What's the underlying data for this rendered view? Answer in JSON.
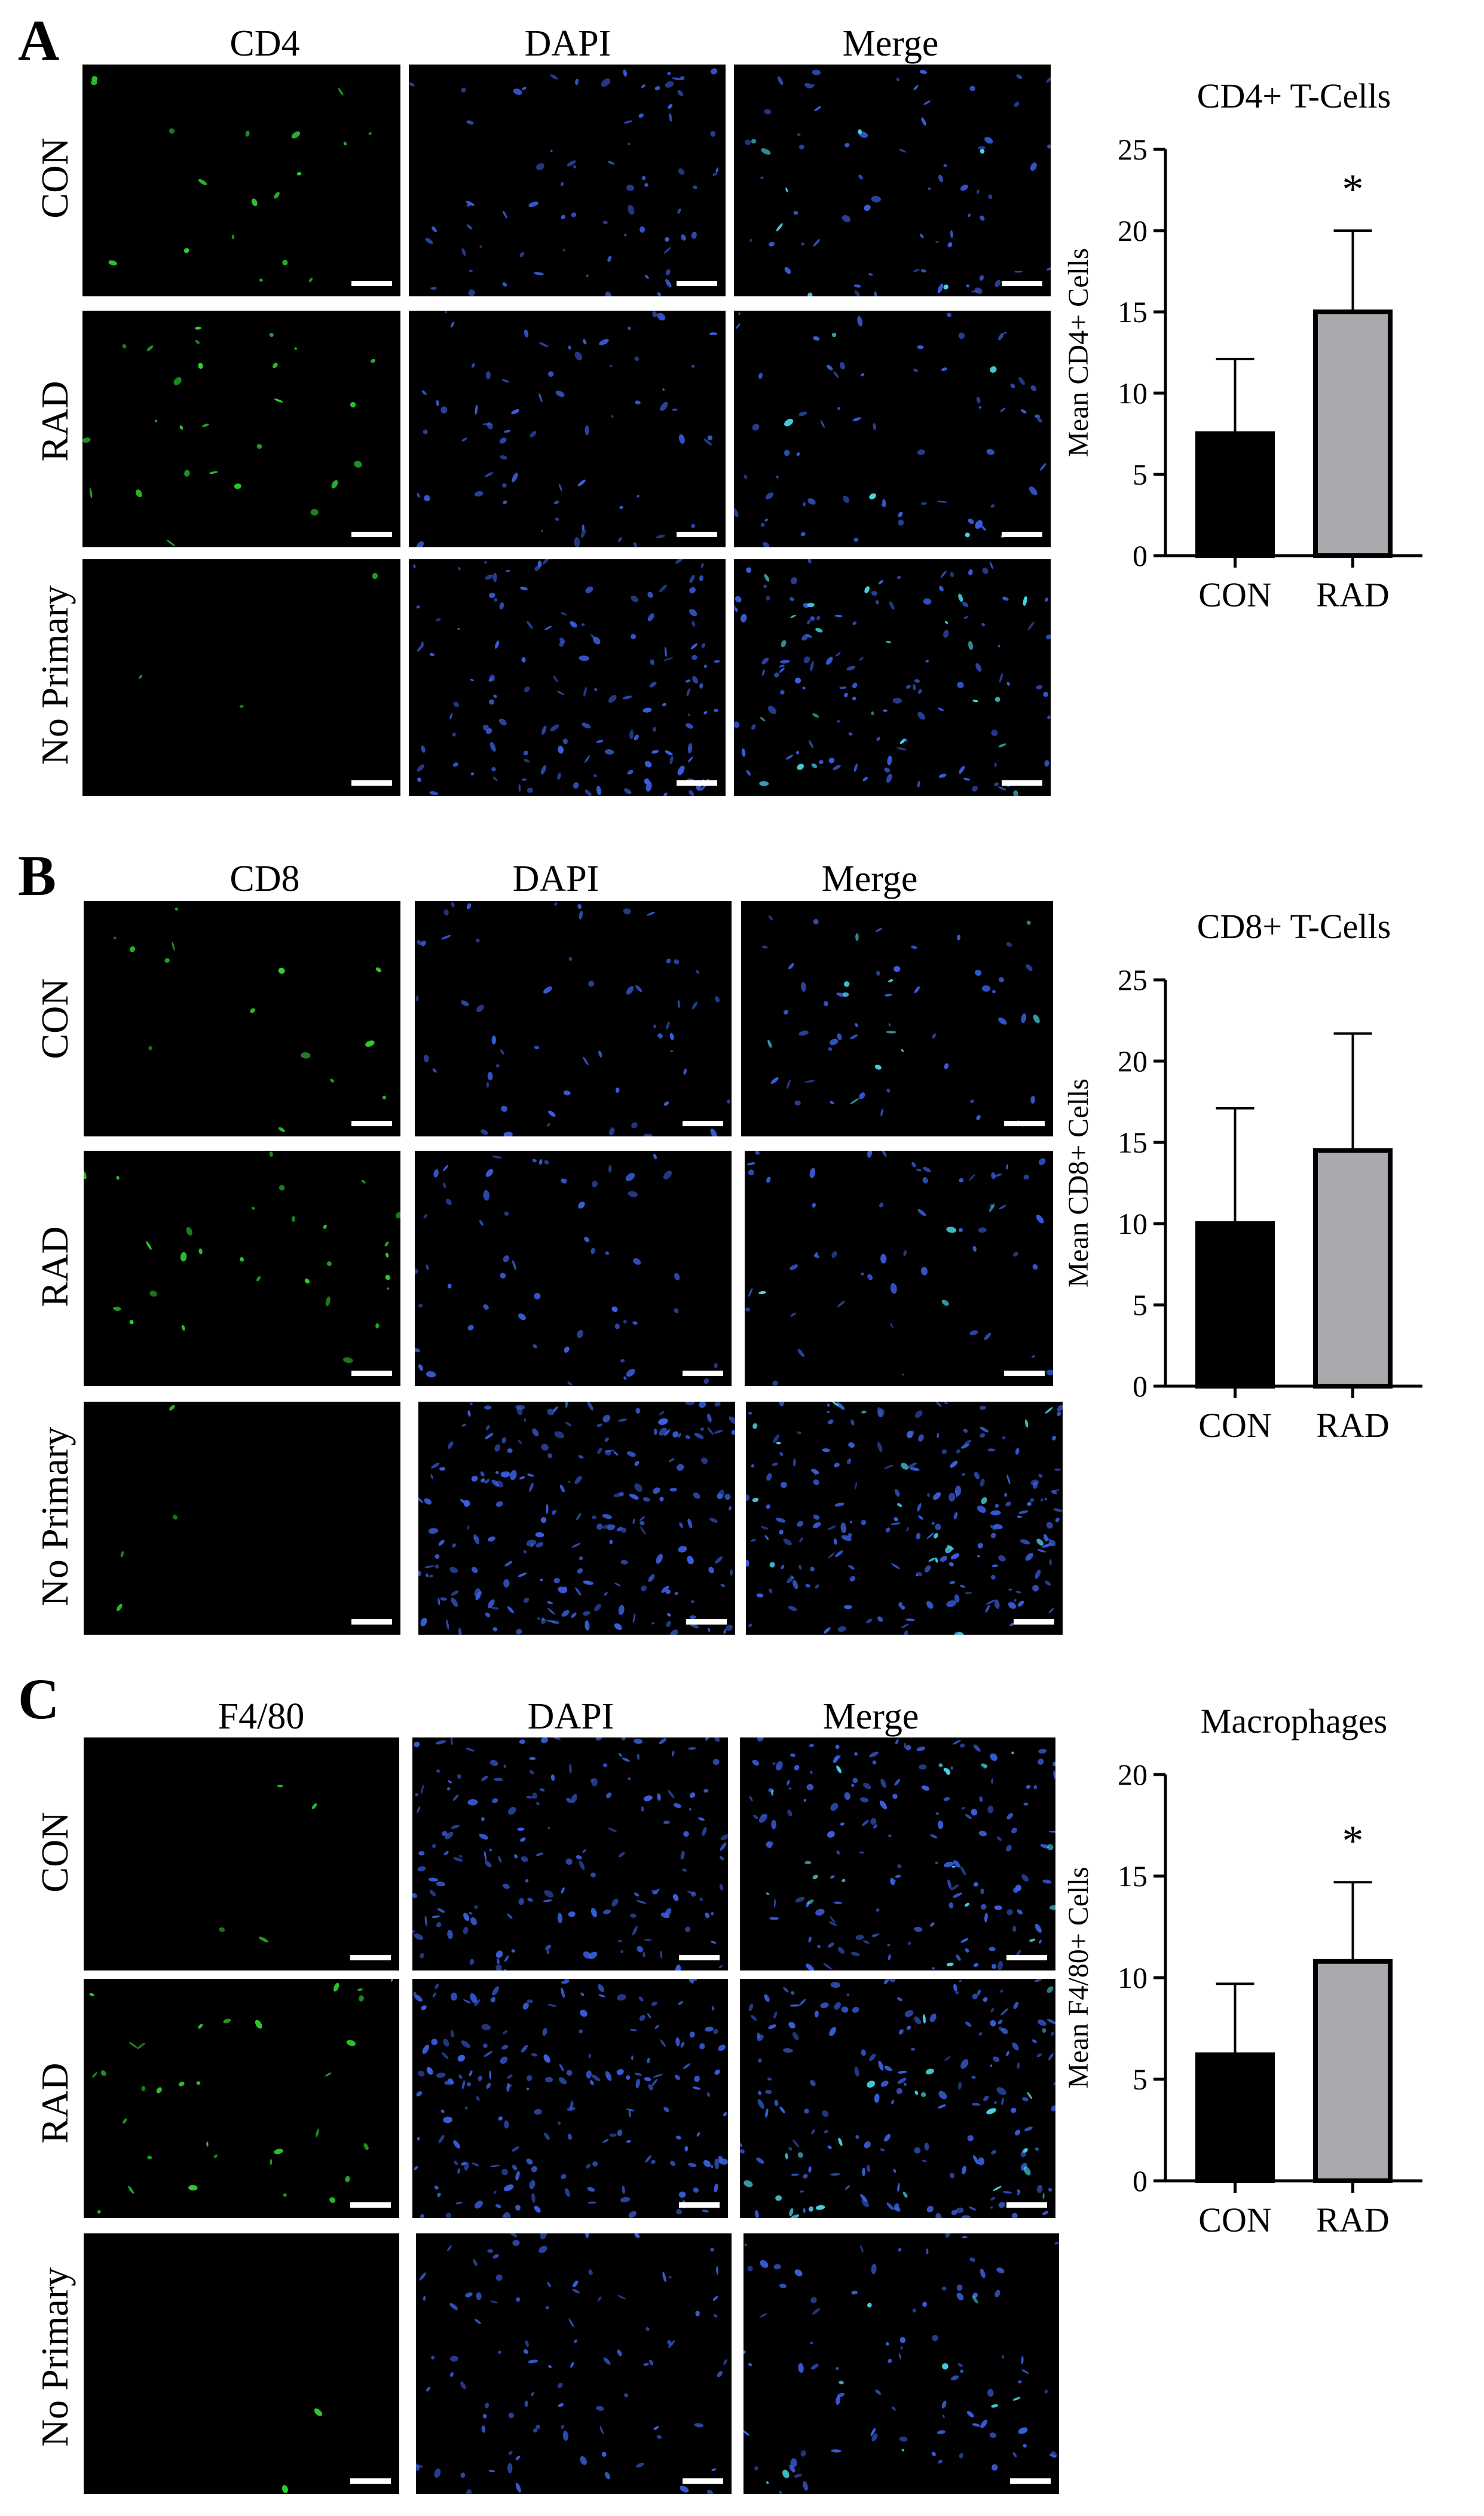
{
  "figure": {
    "panels": [
      {
        "id": "A",
        "letter": "A",
        "columns": [
          "CD4",
          "DAPI",
          "Merge"
        ],
        "rows": [
          "CON",
          "RAD",
          "No Primary"
        ],
        "chart_index": 0
      },
      {
        "id": "B",
        "letter": "B",
        "columns": [
          "CD8",
          "DAPI",
          "Merge"
        ],
        "rows": [
          "CON",
          "RAD",
          "No Primary"
        ],
        "chart_index": 1
      },
      {
        "id": "C",
        "letter": "C",
        "columns": [
          "F4/80",
          "DAPI",
          "Merge"
        ],
        "rows": [
          "CON",
          "RAD",
          "No Primary"
        ],
        "chart_index": 2
      }
    ],
    "colors": {
      "marker_green": "#2fd12f",
      "dapi_blue": "#3a5fe0",
      "merge_cyan": "#4ad8e8",
      "bar_con": "#000000",
      "bar_rad": "#a7a9ac"
    }
  },
  "chart_data": [
    {
      "type": "bar",
      "title": "CD4+ T-Cells",
      "ylabel": "Mean CD4+ Cells",
      "categories": [
        "CON",
        "RAD"
      ],
      "values": [
        7.5,
        15
      ],
      "errors": [
        4.6,
        5
      ],
      "ylim": [
        0,
        25
      ],
      "yticks": [
        0,
        5,
        10,
        15,
        20,
        25
      ],
      "significance": [
        "",
        "*"
      ],
      "bar_colors": [
        "#000000",
        "#a7a9ac"
      ]
    },
    {
      "type": "bar",
      "title": "CD8+ T-Cells",
      "ylabel": "Mean CD8+ Cells",
      "categories": [
        "CON",
        "RAD"
      ],
      "values": [
        10,
        14.5
      ],
      "errors": [
        7.1,
        7.2
      ],
      "ylim": [
        0,
        25
      ],
      "yticks": [
        0,
        5,
        10,
        15,
        20,
        25
      ],
      "significance": [
        "",
        ""
      ],
      "bar_colors": [
        "#000000",
        "#a7a9ac"
      ]
    },
    {
      "type": "bar",
      "title": "Macrophages",
      "ylabel": "Mean F4/80+ Cells",
      "categories": [
        "CON",
        "RAD"
      ],
      "values": [
        6.2,
        10.8
      ],
      "errors": [
        3.5,
        3.9
      ],
      "ylim": [
        0,
        20
      ],
      "yticks": [
        0,
        5,
        10,
        15,
        20
      ],
      "significance": [
        "",
        "*"
      ],
      "bar_colors": [
        "#000000",
        "#a7a9ac"
      ]
    }
  ]
}
